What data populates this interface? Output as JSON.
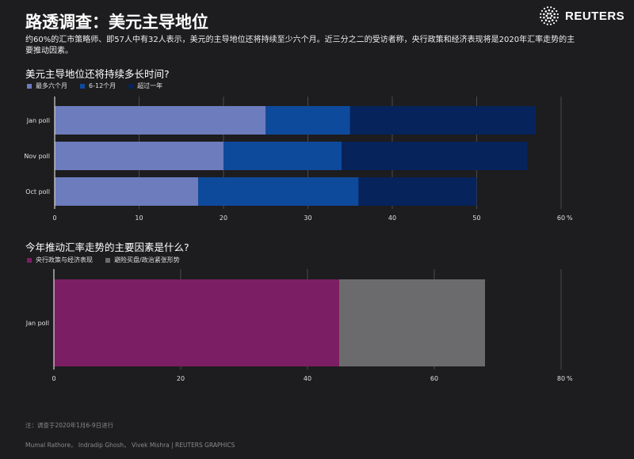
{
  "header": {
    "title": "路透调查：美元主导地位",
    "subtitle": "约60%的汇市策略师、即57人中有32人表示，美元的主导地位还将持续至少六个月。近三分之二的受访者称，央行政策和经济表现将是2020年汇率走势的主要推动因素。",
    "logo_text": "REUTERS",
    "logo_icon": "reuters-dots-icon"
  },
  "chart_data": [
    {
      "type": "bar",
      "orientation": "horizontal",
      "stacked": true,
      "title": "美元主导地位还将持续多长时间?",
      "categories": [
        "Jan poll",
        "Nov poll",
        "Oct poll"
      ],
      "series": [
        {
          "name": "最多六个月",
          "color": "#6c7cbd",
          "values": [
            25,
            20,
            17
          ]
        },
        {
          "name": "6-12个月",
          "color": "#0e4a9c",
          "values": [
            10,
            14,
            19
          ]
        },
        {
          "name": "超过一年",
          "color": "#06235c",
          "values": [
            22,
            22,
            14
          ]
        }
      ],
      "xlim": [
        0,
        60
      ],
      "ticks": [
        "0",
        "10",
        "20",
        "30",
        "40",
        "50",
        "60"
      ],
      "unit": "%",
      "grid": true,
      "legend": "top-left"
    },
    {
      "type": "bar",
      "orientation": "horizontal",
      "stacked": true,
      "title": "今年推动汇率走势的主要因素是什么?",
      "categories": [
        "Jan poll"
      ],
      "series": [
        {
          "name": "央行政策与经济表现",
          "color": "#7c1e63",
          "values": [
            45
          ]
        },
        {
          "name": "避险买盘/政治紧张形势",
          "color": "#6b6b6d",
          "values": [
            23
          ]
        }
      ],
      "xlim": [
        0,
        80
      ],
      "ticks": [
        "0",
        "20",
        "40",
        "60",
        "80"
      ],
      "unit": "%",
      "grid": true,
      "legend": "top-left"
    }
  ],
  "footer": {
    "note": "注：调查于2020年1月6-9日进行",
    "credit": "Mumal Rathore，  Indradip Ghosh，  Vivek Mishra    |  REUTERS GRAPHICS"
  }
}
